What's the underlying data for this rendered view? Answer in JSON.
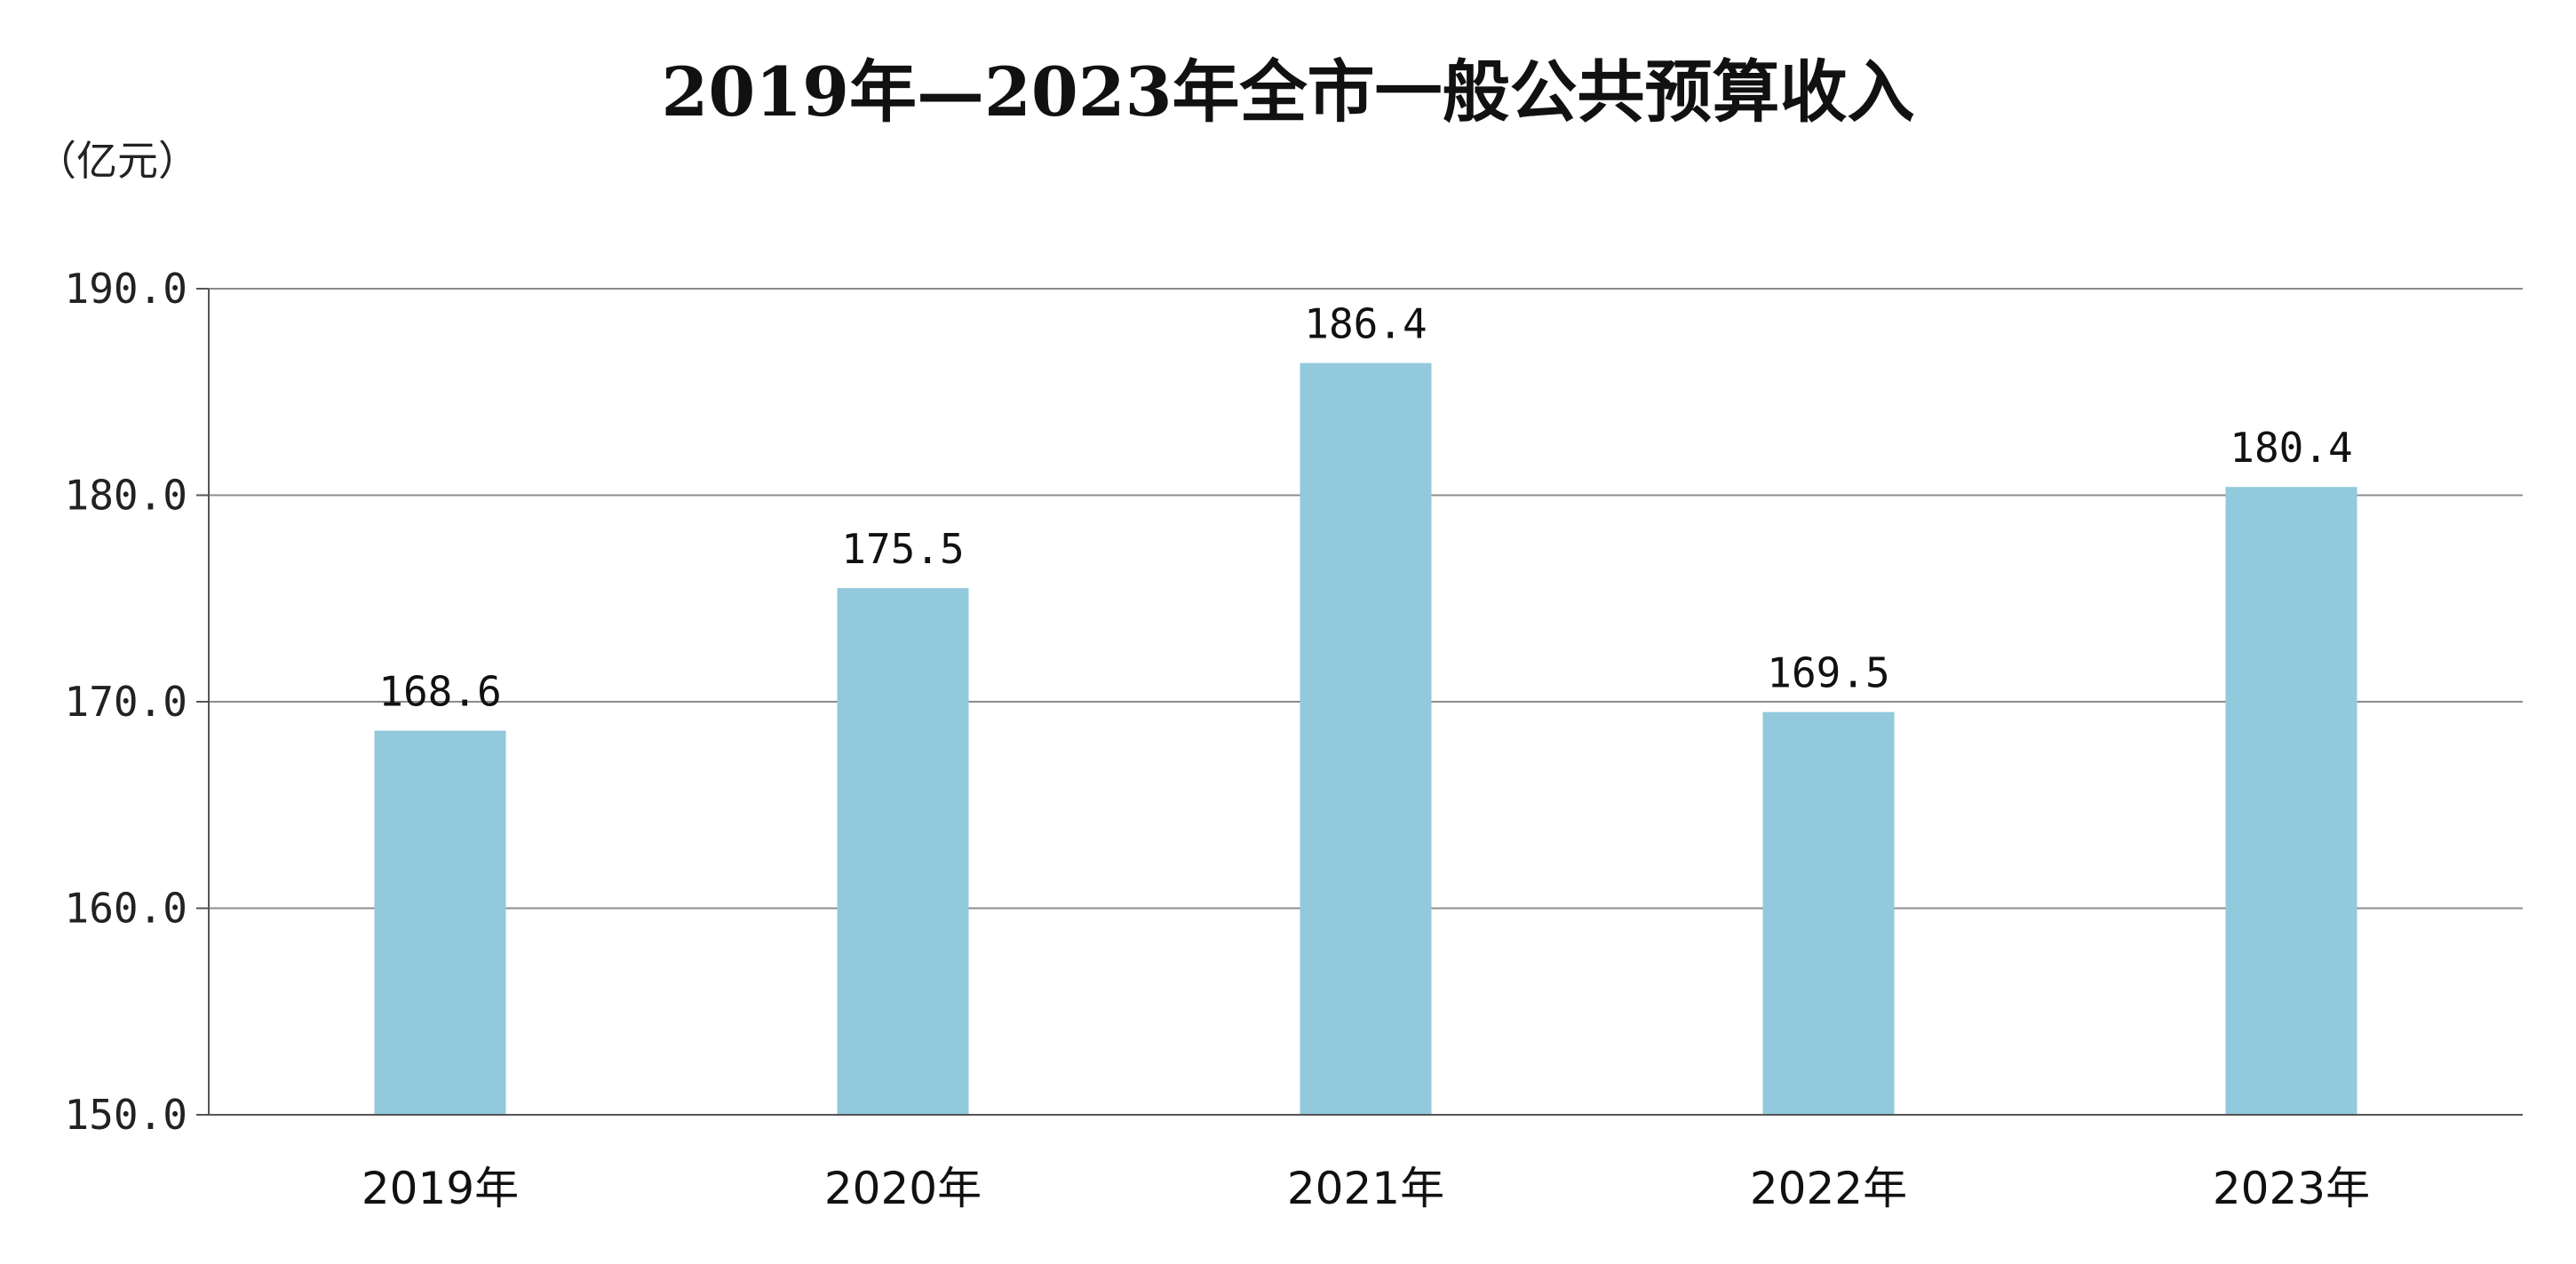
{
  "chart_data": {
    "type": "bar",
    "title": "2019年—2023年全市一般公共预算收入",
    "unit_label": "（亿元）",
    "categories": [
      "2019年",
      "2020年",
      "2021年",
      "2022年",
      "2023年"
    ],
    "values": [
      168.6,
      175.5,
      186.4,
      169.5,
      180.4
    ],
    "value_labels": [
      "168.6",
      "175.5",
      "186.4",
      "169.5",
      "180.4"
    ],
    "yticks": [
      "150.0",
      "160.0",
      "170.0",
      "180.0",
      "190.0"
    ],
    "ylim": [
      150,
      190
    ],
    "grid": true,
    "legend": "none",
    "bar_color": "#92c9dc"
  }
}
